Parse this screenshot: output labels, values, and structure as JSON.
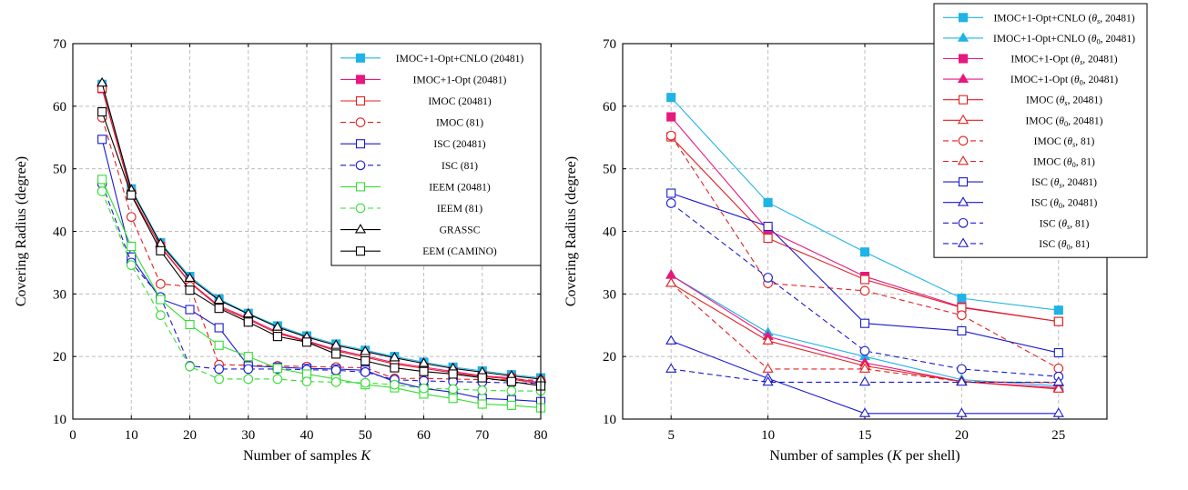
{
  "colors": {
    "cyan": "#1fb3e6",
    "magenta": "#e6197f",
    "red": "#e02020",
    "blue": "#1a1acc",
    "green": "#33dd33",
    "black": "#000000"
  },
  "chart_data": [
    {
      "type": "line",
      "xlabel": "Number of samples K",
      "ylabel": "Covering Radius (degree)",
      "xlim": [
        0,
        80
      ],
      "ylim": [
        10,
        70
      ],
      "xticks": [
        0,
        10,
        20,
        30,
        40,
        50,
        60,
        70,
        80
      ],
      "yticks": [
        10,
        20,
        30,
        40,
        50,
        60,
        70
      ],
      "grid": true,
      "legend_position": "top-right",
      "x": [
        5,
        10,
        15,
        20,
        25,
        30,
        35,
        40,
        45,
        50,
        55,
        60,
        65,
        70,
        75,
        80
      ],
      "series": [
        {
          "name": "IMOC+1-Opt+CNLO (20481)",
          "color": "cyan",
          "marker": "square-filled",
          "dash": "solid",
          "values": [
            63.5,
            46.8,
            38.2,
            32.8,
            29.2,
            26.9,
            24.9,
            23.3,
            22.0,
            21.0,
            20.0,
            19.1,
            18.3,
            17.7,
            17.1,
            16.6
          ]
        },
        {
          "name": "IMOC+1-Opt (20481)",
          "color": "magenta",
          "marker": "square-filled",
          "dash": "solid",
          "values": [
            62.8,
            45.9,
            37.6,
            31.9,
            28.1,
            26.1,
            23.9,
            22.5,
            21.1,
            20.1,
            19.0,
            18.3,
            17.6,
            16.9,
            16.6,
            15.8
          ]
        },
        {
          "name": "IMOC (20481)",
          "color": "red",
          "marker": "square-open",
          "dash": "solid",
          "values": [
            62.9,
            46.0,
            37.5,
            31.8,
            27.9,
            25.9,
            23.7,
            22.4,
            20.9,
            19.9,
            18.8,
            18.1,
            17.4,
            16.8,
            16.4,
            15.6
          ]
        },
        {
          "name": "IMOC (81)",
          "color": "red",
          "marker": "circle-open",
          "dash": "dashed",
          "values": [
            58.2,
            42.3,
            31.6,
            31.2,
            18.7,
            18.6,
            18.5,
            18.4,
            18.3,
            18.2,
            16.5,
            16.5,
            16.4,
            16.3,
            16.3,
            16.2
          ]
        },
        {
          "name": "ISC (20481)",
          "color": "blue",
          "marker": "square-open",
          "dash": "solid",
          "values": [
            54.7,
            35.9,
            29.2,
            27.5,
            24.6,
            18.5,
            18.3,
            18.1,
            18.0,
            17.8,
            16.0,
            14.9,
            14.3,
            13.3,
            13.1,
            12.8
          ]
        },
        {
          "name": "ISC (81)",
          "color": "blue",
          "marker": "circle-open",
          "dash": "dashed",
          "values": [
            47.6,
            35.0,
            29.5,
            18.5,
            18.0,
            18.0,
            18.0,
            17.9,
            17.8,
            17.5,
            16.3,
            16.1,
            16.0,
            15.9,
            15.8,
            15.7
          ]
        },
        {
          "name": "IEEM (20481)",
          "color": "green",
          "marker": "square-open",
          "dash": "solid",
          "values": [
            48.3,
            37.6,
            29.1,
            25.1,
            21.8,
            20.0,
            18.1,
            17.2,
            16.4,
            15.5,
            15.0,
            14.0,
            13.3,
            12.4,
            12.2,
            11.8
          ]
        },
        {
          "name": "IEEM (81)",
          "color": "green",
          "marker": "circle-open",
          "dash": "dashed",
          "values": [
            46.4,
            34.6,
            26.6,
            18.4,
            16.4,
            16.4,
            16.4,
            16.0,
            15.9,
            15.8,
            15.5,
            14.9,
            14.8,
            14.6,
            14.5,
            14.5
          ]
        },
        {
          "name": "GRASSC",
          "color": "black",
          "marker": "triangle-open",
          "dash": "solid",
          "values": [
            63.7,
            46.6,
            38.0,
            32.5,
            29.0,
            26.8,
            24.7,
            23.1,
            21.8,
            20.8,
            19.8,
            18.9,
            18.1,
            17.5,
            16.9,
            16.4
          ]
        },
        {
          "name": "EEM (CAMINO)",
          "color": "black",
          "marker": "square-open",
          "dash": "solid",
          "values": [
            59.1,
            45.8,
            36.9,
            30.6,
            27.7,
            25.5,
            23.2,
            22.3,
            20.4,
            19.3,
            18.2,
            17.6,
            17.2,
            16.6,
            16.0,
            15.3
          ]
        }
      ]
    },
    {
      "type": "line",
      "xlabel": "Number of samples (K per shell)",
      "ylabel": "Covering Radius (degree)",
      "xlim": [
        2.5,
        27.5
      ],
      "ylim": [
        10,
        70
      ],
      "xticks": [
        5,
        10,
        15,
        20,
        25
      ],
      "yticks": [
        10,
        20,
        30,
        40,
        50,
        60,
        70
      ],
      "grid": true,
      "legend_position": "top-right",
      "x": [
        5,
        10,
        15,
        20,
        25
      ],
      "series": [
        {
          "name": "IMOC+1-Opt+CNLO (θs, 20481)",
          "color": "cyan",
          "marker": "square-filled",
          "dash": "solid",
          "values": [
            61.4,
            44.6,
            36.7,
            29.3,
            27.4
          ]
        },
        {
          "name": "IMOC+1-Opt+CNLO (θ0, 20481)",
          "color": "cyan",
          "marker": "triangle-filled",
          "dash": "solid",
          "values": [
            33.0,
            23.8,
            20.0,
            16.3,
            15.3
          ]
        },
        {
          "name": "IMOC+1-Opt (θs, 20481)",
          "color": "magenta",
          "marker": "square-filled",
          "dash": "solid",
          "values": [
            58.3,
            40.2,
            32.8,
            27.9,
            25.6
          ]
        },
        {
          "name": "IMOC+1-Opt (θ0, 20481)",
          "color": "magenta",
          "marker": "triangle-filled",
          "dash": "solid",
          "values": [
            33.0,
            23.2,
            19.0,
            16.0,
            15.0
          ]
        },
        {
          "name": "IMOC (θs, 20481)",
          "color": "red",
          "marker": "square-open",
          "dash": "solid",
          "values": [
            55.1,
            38.9,
            32.3,
            27.8,
            25.6
          ]
        },
        {
          "name": "IMOC (θ0, 20481)",
          "color": "red",
          "marker": "triangle-open",
          "dash": "solid",
          "values": [
            31.7,
            22.5,
            18.5,
            16.0,
            14.8
          ]
        },
        {
          "name": "IMOC (θs, 81)",
          "color": "red",
          "marker": "circle-open",
          "dash": "dashed",
          "values": [
            55.3,
            31.7,
            30.5,
            26.6,
            18.1
          ]
        },
        {
          "name": "IMOC (θ0, 81)",
          "color": "red",
          "marker": "triangle-open",
          "dash": "dashed",
          "values": [
            31.7,
            18.0,
            18.0,
            16.0,
            15.8
          ]
        },
        {
          "name": "ISC (θs, 20481)",
          "color": "blue",
          "marker": "square-open",
          "dash": "solid",
          "values": [
            46.1,
            40.8,
            25.3,
            24.1,
            20.6
          ]
        },
        {
          "name": "ISC (θ0, 20481)",
          "color": "blue",
          "marker": "triangle-open",
          "dash": "solid",
          "values": [
            22.5,
            16.5,
            10.9,
            10.9,
            10.9
          ]
        },
        {
          "name": "ISC (θs, 81)",
          "color": "blue",
          "marker": "circle-open",
          "dash": "dashed",
          "values": [
            44.5,
            32.6,
            20.9,
            18.0,
            16.8
          ]
        },
        {
          "name": "ISC (θ0, 81)",
          "color": "blue",
          "marker": "triangle-open",
          "dash": "dashed",
          "values": [
            18.0,
            15.9,
            15.9,
            15.9,
            15.9
          ]
        }
      ]
    }
  ]
}
